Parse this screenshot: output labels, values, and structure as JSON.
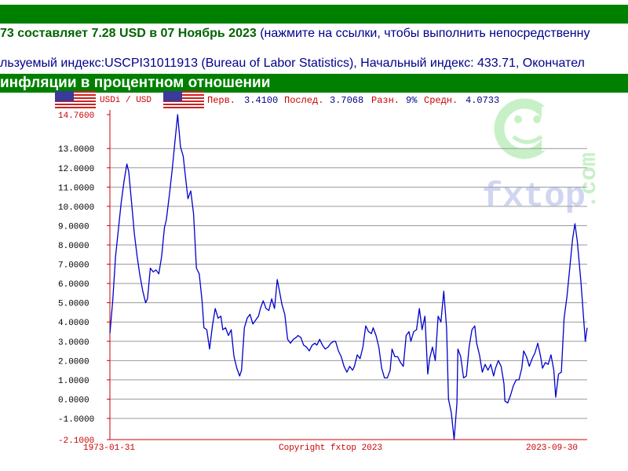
{
  "header": {
    "line1_part1": "73 составляет ",
    "line1_amount": "7.28 USD в 07 Ноябрь 2023",
    "line1_part2": " (нажмите на ссылки, чтобы выполнить непосредственну",
    "line2": "льзуемый индекс:USCPI31011913 (Bureau of Labor Statistics), Начальный индекс: 433.71, Окончател",
    "section_title": "инфляции в процентном отношении"
  },
  "legend": {
    "series_label": "USDi / USD",
    "first_label": "Перв.",
    "first_value": "3.4100",
    "last_label": "Послед.",
    "last_value": "3.7068",
    "diff_label": "Разн.",
    "diff_value": "9%",
    "avg_label": "Средн.",
    "avg_value": "4.0733"
  },
  "footer": {
    "start_date": "1973-01-31",
    "copyright": "Copyright fxtop 2023",
    "end_date": "2023-09-30"
  },
  "watermark": {
    "brand": "fxtop",
    "domain": ".com"
  },
  "colors": {
    "bar_green": "#008000",
    "text_blue": "#00008b",
    "highlight_green": "#006400",
    "line_blue": "#0000cc",
    "label_red": "#cc0000",
    "axis_red": "#cc0000"
  },
  "chart_data": {
    "type": "line",
    "title": "инфляции в процентном отношении",
    "series_name": "USDi / USD",
    "x_start": "1973-01-31",
    "x_end": "2023-09-30",
    "ylim": [
      -2.1,
      14.76
    ],
    "y_ticks": [
      "14.7600",
      "13.0000",
      "12.0000",
      "11.0000",
      "10.0000",
      "9.0000",
      "8.0000",
      "7.0000",
      "6.0000",
      "5.0000",
      "4.0000",
      "3.0000",
      "2.0000",
      "1.0000",
      "0.0000",
      "-1.0000",
      "-2.1000"
    ],
    "y_tick_values": [
      14.76,
      13,
      12,
      11,
      10,
      9,
      8,
      7,
      6,
      5,
      4,
      3,
      2,
      1,
      0,
      -1,
      -2.1
    ],
    "grid": true,
    "points": [
      [
        1973.0,
        3.41
      ],
      [
        1973.3,
        5.1
      ],
      [
        1973.6,
        7.4
      ],
      [
        1973.9,
        8.8
      ],
      [
        1974.2,
        10.2
      ],
      [
        1974.5,
        11.3
      ],
      [
        1974.8,
        12.2
      ],
      [
        1975.0,
        11.8
      ],
      [
        1975.3,
        10.2
      ],
      [
        1975.6,
        8.6
      ],
      [
        1975.9,
        7.4
      ],
      [
        1976.2,
        6.4
      ],
      [
        1976.5,
        5.6
      ],
      [
        1976.8,
        5.0
      ],
      [
        1977.0,
        5.2
      ],
      [
        1977.3,
        6.8
      ],
      [
        1977.6,
        6.6
      ],
      [
        1977.9,
        6.7
      ],
      [
        1978.2,
        6.5
      ],
      [
        1978.5,
        7.4
      ],
      [
        1978.8,
        8.9
      ],
      [
        1979.0,
        9.3
      ],
      [
        1979.3,
        10.5
      ],
      [
        1979.6,
        11.8
      ],
      [
        1979.9,
        13.3
      ],
      [
        1980.2,
        14.76
      ],
      [
        1980.5,
        13.1
      ],
      [
        1980.8,
        12.6
      ],
      [
        1981.0,
        11.7
      ],
      [
        1981.3,
        10.4
      ],
      [
        1981.6,
        10.8
      ],
      [
        1981.9,
        9.6
      ],
      [
        1982.2,
        6.8
      ],
      [
        1982.5,
        6.5
      ],
      [
        1982.8,
        5.1
      ],
      [
        1983.0,
        3.7
      ],
      [
        1983.3,
        3.6
      ],
      [
        1983.6,
        2.6
      ],
      [
        1983.9,
        3.8
      ],
      [
        1984.2,
        4.7
      ],
      [
        1984.5,
        4.2
      ],
      [
        1984.8,
        4.3
      ],
      [
        1985.0,
        3.6
      ],
      [
        1985.3,
        3.7
      ],
      [
        1985.6,
        3.3
      ],
      [
        1985.9,
        3.6
      ],
      [
        1986.2,
        2.2
      ],
      [
        1986.5,
        1.6
      ],
      [
        1986.8,
        1.2
      ],
      [
        1987.0,
        1.5
      ],
      [
        1987.3,
        3.7
      ],
      [
        1987.6,
        4.2
      ],
      [
        1987.9,
        4.4
      ],
      [
        1988.2,
        3.9
      ],
      [
        1988.5,
        4.1
      ],
      [
        1988.8,
        4.3
      ],
      [
        1989.0,
        4.7
      ],
      [
        1989.3,
        5.1
      ],
      [
        1989.6,
        4.7
      ],
      [
        1989.9,
        4.6
      ],
      [
        1990.2,
        5.2
      ],
      [
        1990.5,
        4.7
      ],
      [
        1990.8,
        6.2
      ],
      [
        1991.0,
        5.7
      ],
      [
        1991.3,
        4.9
      ],
      [
        1991.6,
        4.4
      ],
      [
        1991.9,
        3.1
      ],
      [
        1992.2,
        2.9
      ],
      [
        1992.5,
        3.1
      ],
      [
        1992.8,
        3.2
      ],
      [
        1993.0,
        3.3
      ],
      [
        1993.3,
        3.2
      ],
      [
        1993.6,
        2.8
      ],
      [
        1993.9,
        2.7
      ],
      [
        1994.2,
        2.5
      ],
      [
        1994.5,
        2.8
      ],
      [
        1994.8,
        2.9
      ],
      [
        1995.0,
        2.8
      ],
      [
        1995.3,
        3.1
      ],
      [
        1995.6,
        2.8
      ],
      [
        1995.9,
        2.6
      ],
      [
        1996.2,
        2.7
      ],
      [
        1996.5,
        2.9
      ],
      [
        1996.8,
        3.0
      ],
      [
        1997.0,
        3.0
      ],
      [
        1997.3,
        2.5
      ],
      [
        1997.6,
        2.2
      ],
      [
        1997.9,
        1.7
      ],
      [
        1998.2,
        1.4
      ],
      [
        1998.5,
        1.7
      ],
      [
        1998.8,
        1.5
      ],
      [
        1999.0,
        1.7
      ],
      [
        1999.3,
        2.3
      ],
      [
        1999.6,
        2.1
      ],
      [
        1999.9,
        2.7
      ],
      [
        2000.2,
        3.8
      ],
      [
        2000.5,
        3.5
      ],
      [
        2000.8,
        3.4
      ],
      [
        2001.0,
        3.7
      ],
      [
        2001.3,
        3.3
      ],
      [
        2001.6,
        2.7
      ],
      [
        2001.9,
        1.6
      ],
      [
        2002.2,
        1.1
      ],
      [
        2002.5,
        1.1
      ],
      [
        2002.8,
        1.5
      ],
      [
        2003.0,
        2.6
      ],
      [
        2003.3,
        2.2
      ],
      [
        2003.6,
        2.2
      ],
      [
        2003.9,
        1.9
      ],
      [
        2004.2,
        1.7
      ],
      [
        2004.5,
        3.3
      ],
      [
        2004.8,
        3.5
      ],
      [
        2005.0,
        3.0
      ],
      [
        2005.3,
        3.5
      ],
      [
        2005.6,
        3.6
      ],
      [
        2005.9,
        4.7
      ],
      [
        2006.2,
        3.6
      ],
      [
        2006.5,
        4.3
      ],
      [
        2006.8,
        1.3
      ],
      [
        2007.0,
        2.1
      ],
      [
        2007.3,
        2.7
      ],
      [
        2007.6,
        2.0
      ],
      [
        2007.9,
        4.3
      ],
      [
        2008.2,
        4.0
      ],
      [
        2008.5,
        5.6
      ],
      [
        2008.8,
        3.7
      ],
      [
        2009.0,
        0.0
      ],
      [
        2009.3,
        -0.7
      ],
      [
        2009.6,
        -2.1
      ],
      [
        2009.9,
        -0.2
      ],
      [
        2010.0,
        2.6
      ],
      [
        2010.3,
        2.2
      ],
      [
        2010.6,
        1.1
      ],
      [
        2010.9,
        1.2
      ],
      [
        2011.2,
        2.7
      ],
      [
        2011.5,
        3.6
      ],
      [
        2011.8,
        3.8
      ],
      [
        2012.0,
        2.9
      ],
      [
        2012.3,
        2.3
      ],
      [
        2012.6,
        1.4
      ],
      [
        2012.9,
        1.8
      ],
      [
        2013.2,
        1.5
      ],
      [
        2013.5,
        1.8
      ],
      [
        2013.8,
        1.2
      ],
      [
        2014.0,
        1.6
      ],
      [
        2014.3,
        2.0
      ],
      [
        2014.6,
        1.7
      ],
      [
        2014.9,
        0.8
      ],
      [
        2015.0,
        -0.1
      ],
      [
        2015.3,
        -0.2
      ],
      [
        2015.6,
        0.2
      ],
      [
        2015.9,
        0.7
      ],
      [
        2016.2,
        1.0
      ],
      [
        2016.5,
        1.0
      ],
      [
        2016.8,
        1.6
      ],
      [
        2017.0,
        2.5
      ],
      [
        2017.3,
        2.2
      ],
      [
        2017.6,
        1.7
      ],
      [
        2017.9,
        2.1
      ],
      [
        2018.2,
        2.4
      ],
      [
        2018.5,
        2.9
      ],
      [
        2018.8,
        2.2
      ],
      [
        2019.0,
        1.6
      ],
      [
        2019.3,
        1.9
      ],
      [
        2019.6,
        1.8
      ],
      [
        2019.9,
        2.3
      ],
      [
        2020.2,
        1.5
      ],
      [
        2020.4,
        0.1
      ],
      [
        2020.7,
        1.3
      ],
      [
        2021.0,
        1.4
      ],
      [
        2021.3,
        4.2
      ],
      [
        2021.6,
        5.3
      ],
      [
        2021.9,
        6.8
      ],
      [
        2022.2,
        8.3
      ],
      [
        2022.45,
        9.1
      ],
      [
        2022.7,
        8.2
      ],
      [
        2022.9,
        7.1
      ],
      [
        2023.1,
        6.0
      ],
      [
        2023.4,
        4.0
      ],
      [
        2023.55,
        3.0
      ],
      [
        2023.75,
        3.7
      ]
    ]
  }
}
